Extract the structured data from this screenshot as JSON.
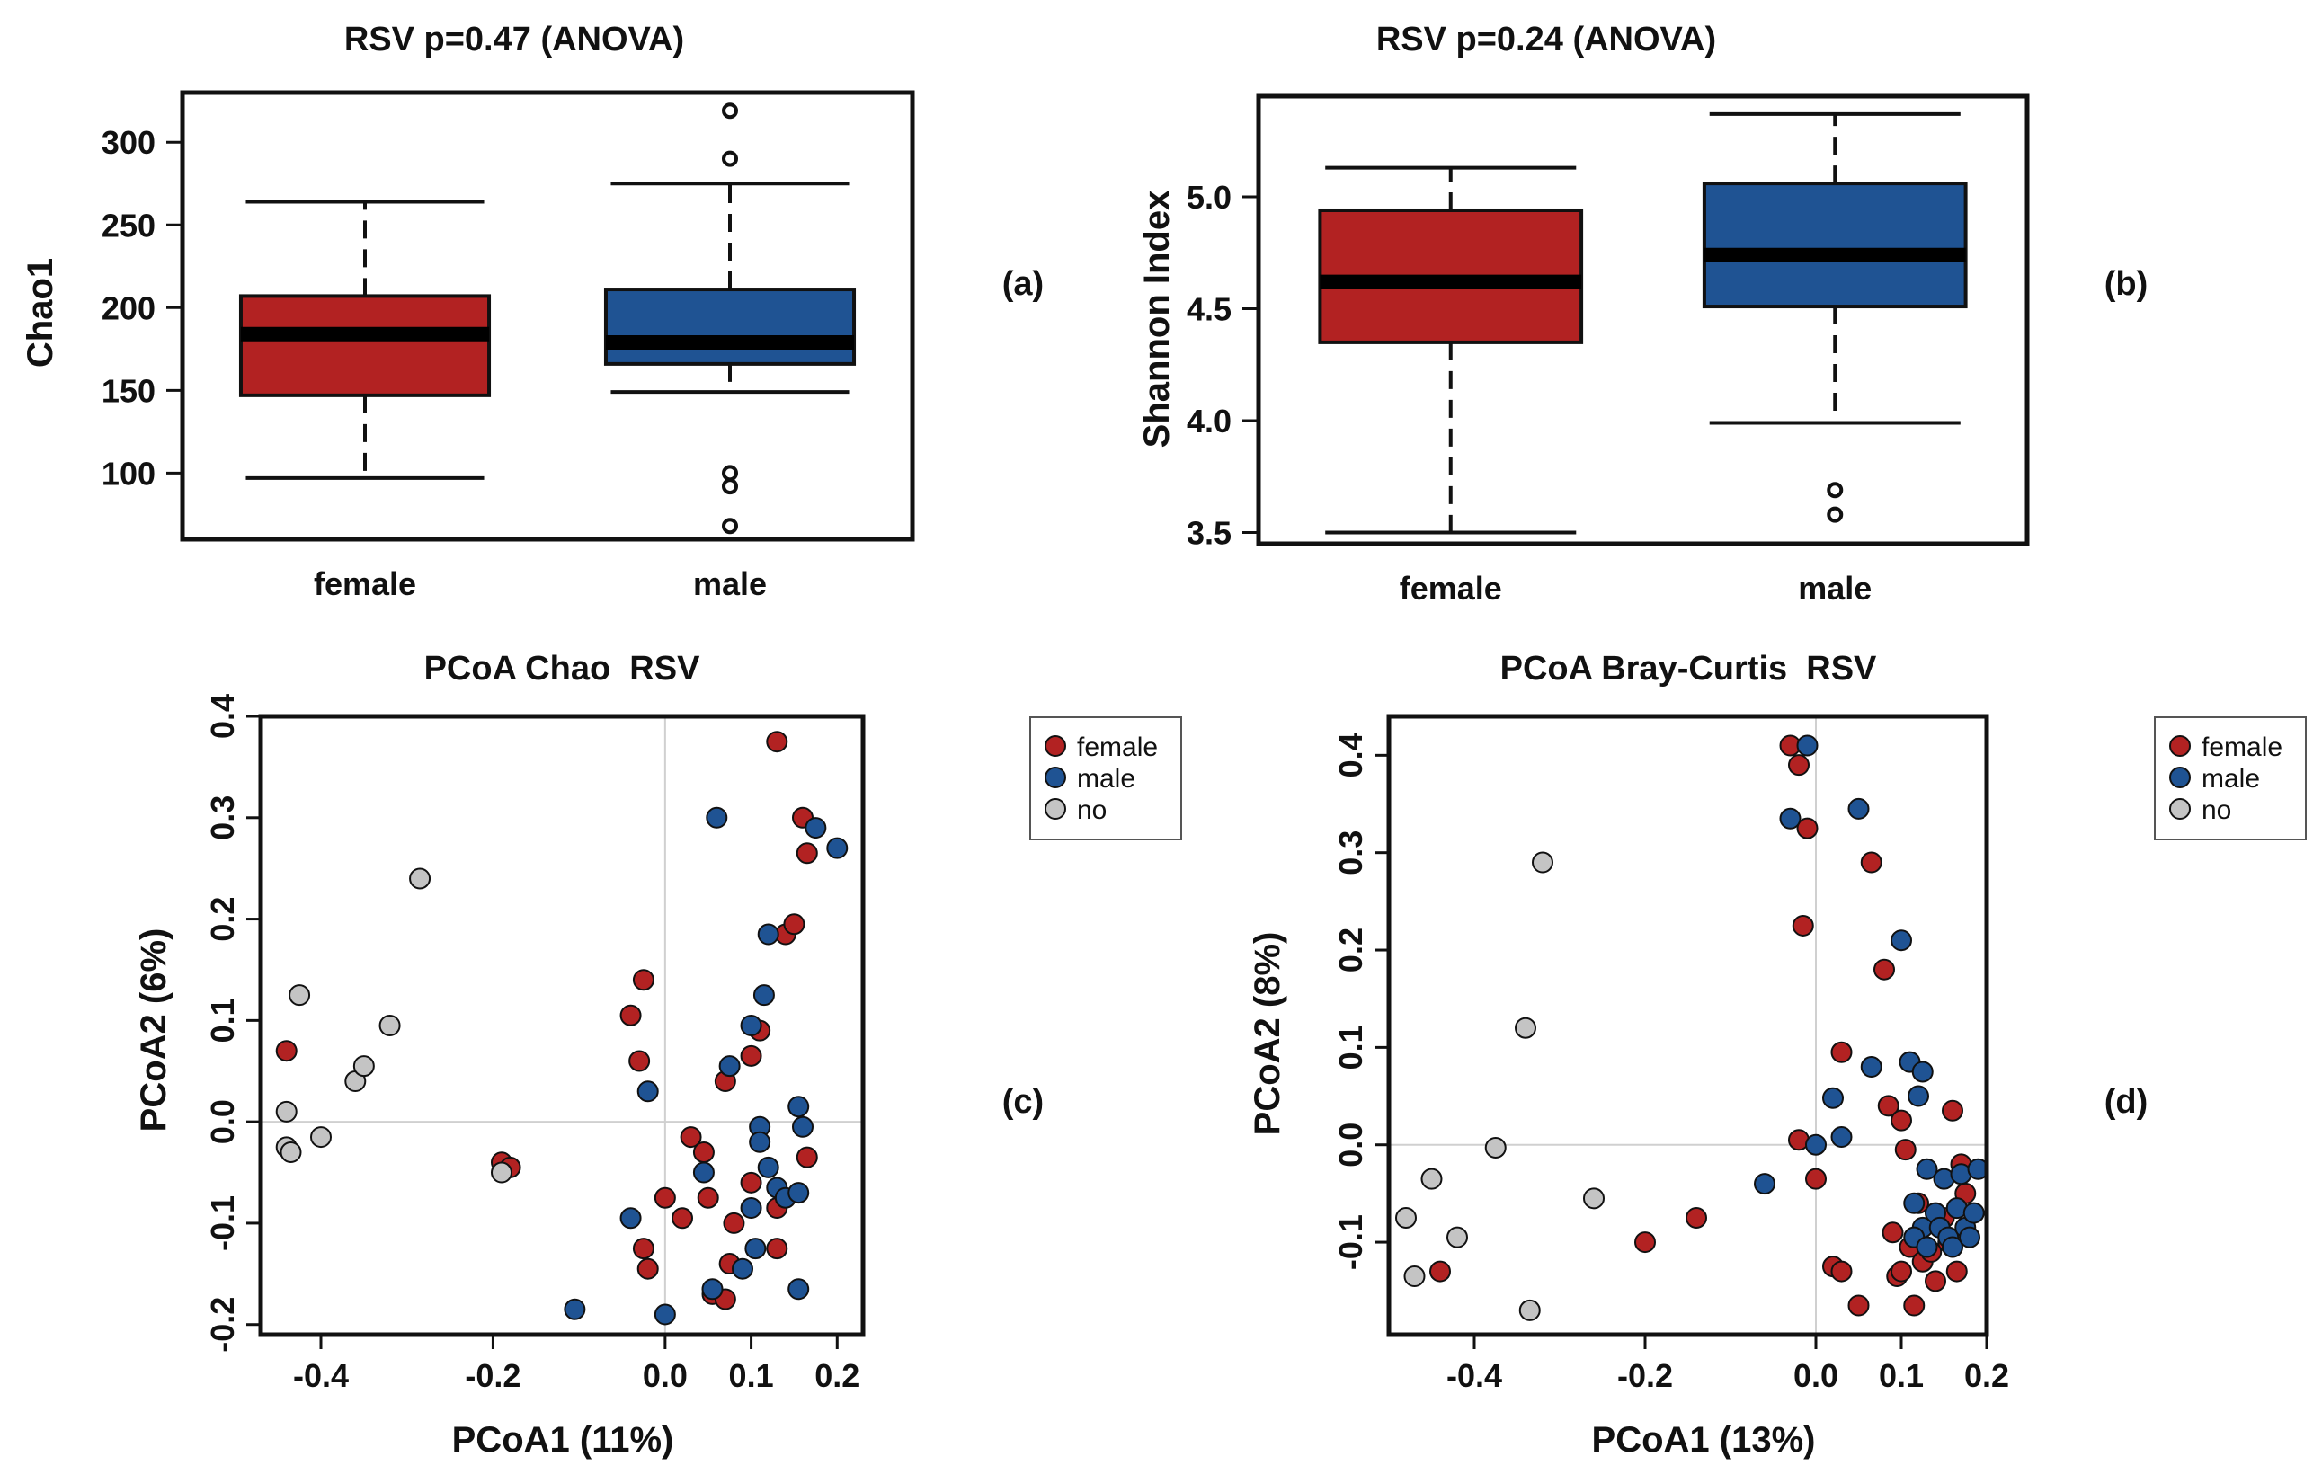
{
  "figure_meta": {
    "colors": {
      "female": "#b22222",
      "male": "#1f5393",
      "no": "#c4c4c4",
      "outline": "#111111",
      "axis_line": "#d0d0d0"
    }
  },
  "chart_data": [
    {
      "type": "boxplot",
      "panel_tag": "(a)",
      "title": "RSV p=0.47 (ANOVA)",
      "xlabel": "",
      "ylabel": "Chao1",
      "ylim": [
        60,
        330
      ],
      "yticks": [
        100,
        150,
        200,
        250,
        300
      ],
      "tick_labels": [
        "100",
        "150",
        "200",
        "250",
        "300"
      ],
      "groups": [
        {
          "name": "female",
          "color": "#b22222",
          "whisker_low": 97,
          "q1": 147,
          "median": 184,
          "q3": 207,
          "whisker_high": 264,
          "outliers": []
        },
        {
          "name": "male",
          "color": "#1f5393",
          "whisker_low": 149,
          "q1": 166,
          "median": 179,
          "q3": 211,
          "whisker_high": 275,
          "outliers": [
            319,
            290,
            100,
            92,
            68
          ]
        }
      ]
    },
    {
      "type": "boxplot",
      "panel_tag": "(b)",
      "title": "RSV p=0.24 (ANOVA)",
      "xlabel": "",
      "ylabel": "Shannon Index",
      "ylim": [
        3.45,
        5.45
      ],
      "yticks": [
        3.5,
        4.0,
        4.5,
        5.0
      ],
      "tick_labels": [
        "3.5",
        "4.0",
        "4.5",
        "5.0"
      ],
      "groups": [
        {
          "name": "female",
          "color": "#b22222",
          "whisker_low": 3.5,
          "q1": 4.35,
          "median": 4.62,
          "q3": 4.94,
          "whisker_high": 5.13,
          "outliers": []
        },
        {
          "name": "male",
          "color": "#1f5393",
          "whisker_low": 3.99,
          "q1": 4.51,
          "median": 4.74,
          "q3": 5.06,
          "whisker_high": 5.37,
          "outliers": [
            3.69,
            3.58
          ]
        }
      ]
    },
    {
      "type": "scatter",
      "panel_tag": "(c)",
      "title": "PCoA Chao  RSV",
      "xlabel": "PCoA1 (11%)",
      "ylabel": "PCoA2 (6%)",
      "xlim": [
        -0.47,
        0.23
      ],
      "ylim": [
        -0.21,
        0.4
      ],
      "xticks": [
        -0.4,
        -0.2,
        0.0,
        0.1,
        0.2
      ],
      "xtick_labels": [
        "-0.4",
        "-0.2",
        "0.0",
        "0.1",
        "0.2"
      ],
      "yticks": [
        -0.2,
        -0.1,
        0.0,
        0.1,
        0.2,
        0.3,
        0.4
      ],
      "ytick_labels": [
        "-0.2",
        "-0.1",
        "0.0",
        "0.1",
        "0.2",
        "0.3",
        "0.4"
      ],
      "legend": [
        "female",
        "male",
        "no"
      ],
      "series": [
        {
          "name": "female",
          "color": "#b22222",
          "points": [
            [
              -0.44,
              0.07
            ],
            [
              -0.19,
              -0.04
            ],
            [
              -0.18,
              -0.045
            ],
            [
              -0.04,
              0.105
            ],
            [
              -0.025,
              0.14
            ],
            [
              -0.03,
              0.06
            ],
            [
              -0.025,
              -0.125
            ],
            [
              -0.02,
              -0.145
            ],
            [
              0.0,
              -0.075
            ],
            [
              0.02,
              -0.095
            ],
            [
              0.03,
              -0.015
            ],
            [
              0.045,
              -0.03
            ],
            [
              0.05,
              -0.075
            ],
            [
              0.055,
              -0.17
            ],
            [
              0.07,
              -0.175
            ],
            [
              0.07,
              0.04
            ],
            [
              0.08,
              -0.1
            ],
            [
              0.075,
              -0.14
            ],
            [
              0.1,
              -0.06
            ],
            [
              0.1,
              0.065
            ],
            [
              0.11,
              0.09
            ],
            [
              0.13,
              -0.085
            ],
            [
              0.13,
              -0.125
            ],
            [
              0.13,
              0.375
            ],
            [
              0.14,
              0.185
            ],
            [
              0.15,
              0.195
            ],
            [
              0.16,
              0.3
            ],
            [
              0.165,
              0.265
            ],
            [
              0.165,
              -0.035
            ]
          ]
        },
        {
          "name": "male",
          "color": "#1f5393",
          "points": [
            [
              -0.105,
              -0.185
            ],
            [
              -0.04,
              -0.095
            ],
            [
              -0.02,
              0.03
            ],
            [
              0.0,
              -0.19
            ],
            [
              0.045,
              -0.05
            ],
            [
              0.055,
              -0.165
            ],
            [
              0.06,
              0.3
            ],
            [
              0.075,
              0.055
            ],
            [
              0.09,
              -0.145
            ],
            [
              0.1,
              0.095
            ],
            [
              0.1,
              -0.085
            ],
            [
              0.105,
              -0.125
            ],
            [
              0.11,
              -0.005
            ],
            [
              0.11,
              -0.02
            ],
            [
              0.115,
              0.125
            ],
            [
              0.12,
              0.185
            ],
            [
              0.12,
              -0.045
            ],
            [
              0.13,
              -0.065
            ],
            [
              0.14,
              -0.075
            ],
            [
              0.155,
              -0.07
            ],
            [
              0.155,
              0.015
            ],
            [
              0.155,
              -0.165
            ],
            [
              0.16,
              -0.005
            ],
            [
              0.175,
              0.29
            ],
            [
              0.2,
              0.27
            ]
          ]
        },
        {
          "name": "no",
          "color": "#c4c4c4",
          "points": [
            [
              -0.44,
              0.01
            ],
            [
              -0.44,
              -0.025
            ],
            [
              -0.435,
              -0.03
            ],
            [
              -0.425,
              0.125
            ],
            [
              -0.4,
              -0.015
            ],
            [
              -0.36,
              0.04
            ],
            [
              -0.35,
              0.055
            ],
            [
              -0.32,
              0.095
            ],
            [
              -0.285,
              0.24
            ],
            [
              -0.19,
              -0.05
            ]
          ]
        }
      ]
    },
    {
      "type": "scatter",
      "panel_tag": "(d)",
      "title": "PCoA Bray-Curtis  RSV",
      "xlabel": "PCoA1 (13%)",
      "ylabel": "PCoA2 (8%)",
      "xlim": [
        -0.5,
        0.2
      ],
      "ylim": [
        -0.195,
        0.44
      ],
      "xticks": [
        -0.4,
        -0.2,
        0.0,
        0.1,
        0.2
      ],
      "xtick_labels": [
        "-0.4",
        "-0.2",
        "0.0",
        "0.1",
        "0.2"
      ],
      "yticks": [
        -0.1,
        0.0,
        0.1,
        0.2,
        0.3,
        0.4
      ],
      "ytick_labels": [
        "-0.1",
        "0.0",
        "0.1",
        "0.2",
        "0.3",
        "0.4"
      ],
      "legend": [
        "female",
        "male",
        "no"
      ],
      "series": [
        {
          "name": "female",
          "color": "#b22222",
          "points": [
            [
              -0.44,
              -0.13
            ],
            [
              -0.2,
              -0.1
            ],
            [
              -0.14,
              -0.075
            ],
            [
              -0.03,
              0.41
            ],
            [
              -0.02,
              0.39
            ],
            [
              -0.01,
              0.325
            ],
            [
              -0.015,
              0.225
            ],
            [
              -0.02,
              0.005
            ],
            [
              0.0,
              -0.035
            ],
            [
              0.02,
              -0.125
            ],
            [
              0.03,
              -0.13
            ],
            [
              0.03,
              0.095
            ],
            [
              0.05,
              -0.165
            ],
            [
              0.065,
              0.29
            ],
            [
              0.08,
              0.18
            ],
            [
              0.085,
              0.04
            ],
            [
              0.09,
              -0.09
            ],
            [
              0.095,
              -0.135
            ],
            [
              0.1,
              0.025
            ],
            [
              0.1,
              -0.13
            ],
            [
              0.105,
              -0.005
            ],
            [
              0.11,
              -0.105
            ],
            [
              0.115,
              -0.165
            ],
            [
              0.12,
              -0.06
            ],
            [
              0.125,
              -0.12
            ],
            [
              0.135,
              -0.11
            ],
            [
              0.14,
              -0.14
            ],
            [
              0.15,
              -0.075
            ],
            [
              0.155,
              -0.1
            ],
            [
              0.16,
              0.035
            ],
            [
              0.165,
              -0.13
            ],
            [
              0.17,
              -0.02
            ],
            [
              0.175,
              -0.05
            ]
          ]
        },
        {
          "name": "male",
          "color": "#1f5393",
          "points": [
            [
              -0.06,
              -0.04
            ],
            [
              -0.03,
              0.335
            ],
            [
              -0.01,
              0.41
            ],
            [
              0.0,
              0.0
            ],
            [
              0.02,
              0.048
            ],
            [
              0.03,
              0.008
            ],
            [
              0.05,
              0.345
            ],
            [
              0.065,
              0.08
            ],
            [
              0.1,
              0.21
            ],
            [
              0.11,
              0.085
            ],
            [
              0.115,
              -0.06
            ],
            [
              0.12,
              0.05
            ],
            [
              0.125,
              0.075
            ],
            [
              0.125,
              -0.085
            ],
            [
              0.13,
              -0.025
            ],
            [
              0.14,
              -0.07
            ],
            [
              0.145,
              -0.085
            ],
            [
              0.15,
              -0.035
            ],
            [
              0.155,
              -0.095
            ],
            [
              0.16,
              -0.105
            ],
            [
              0.165,
              -0.065
            ],
            [
              0.17,
              -0.03
            ],
            [
              0.175,
              -0.085
            ],
            [
              0.18,
              -0.095
            ],
            [
              0.185,
              -0.07
            ],
            [
              0.19,
              -0.025
            ],
            [
              0.115,
              -0.095
            ],
            [
              0.13,
              -0.105
            ]
          ]
        },
        {
          "name": "no",
          "color": "#c4c4c4",
          "points": [
            [
              -0.48,
              -0.075
            ],
            [
              -0.47,
              -0.135
            ],
            [
              -0.45,
              -0.035
            ],
            [
              -0.42,
              -0.095
            ],
            [
              -0.375,
              -0.003
            ],
            [
              -0.34,
              0.12
            ],
            [
              -0.335,
              -0.17
            ],
            [
              -0.32,
              0.29
            ],
            [
              -0.26,
              -0.055
            ]
          ]
        }
      ]
    }
  ]
}
